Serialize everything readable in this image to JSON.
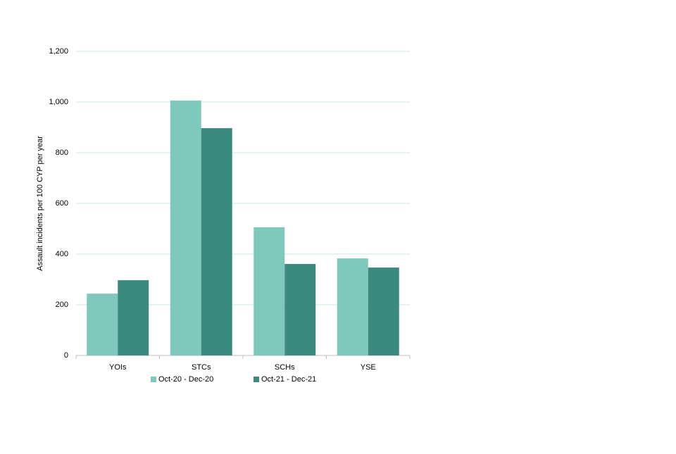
{
  "chart_data": {
    "type": "bar",
    "y_label": "Assault incidents per 100 CYP per year",
    "categories": [
      "YOIs",
      "STCs",
      "SCHs",
      "YSE"
    ],
    "series": [
      {
        "name": "Oct-20 - Dec-20",
        "color": "#7fc8bc",
        "values": [
          244,
          1006,
          506,
          383
        ]
      },
      {
        "name": "Oct-21 - Dec-21",
        "color": "#3a8a7e",
        "values": [
          297,
          897,
          361,
          347
        ]
      }
    ],
    "ylim": [
      0,
      1200
    ],
    "yticks": [
      0,
      200,
      400,
      600,
      800,
      {
        "value": 1000,
        "label": "1,000"
      },
      {
        "value": 1200,
        "label": "1,200"
      }
    ],
    "grid": true,
    "grid_color": "#c8e6e0",
    "legend": "bottom"
  }
}
